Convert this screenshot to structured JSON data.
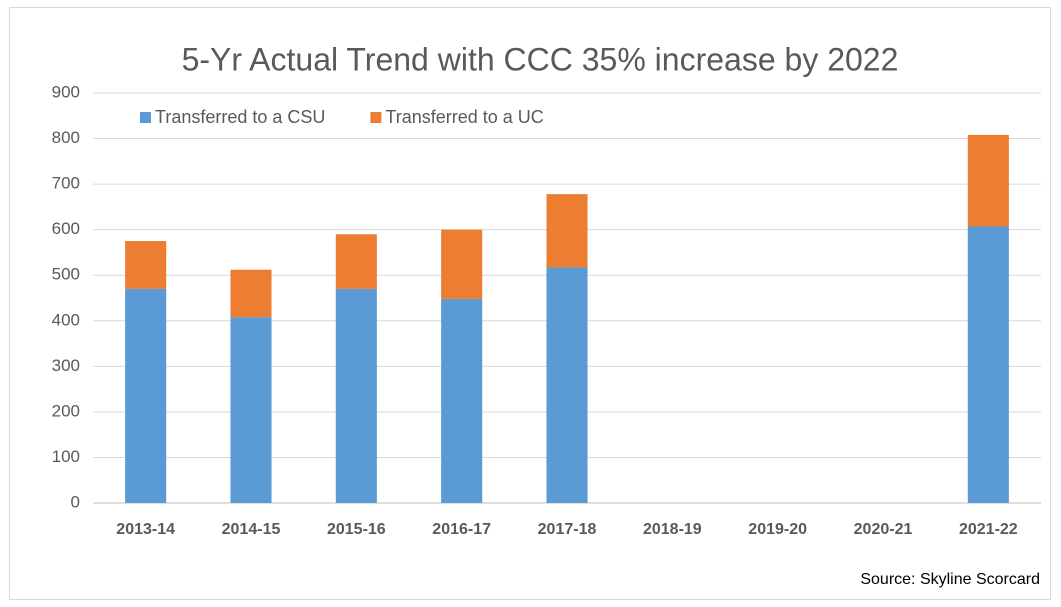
{
  "chart_data": {
    "type": "stacked-bar",
    "title": "5-Yr Actual Trend with CCC 35% increase by 2022",
    "categories": [
      "2013-14",
      "2014-15",
      "2015-16",
      "2016-17",
      "2017-18",
      "2018-19",
      "2019-20",
      "2020-21",
      "2021-22"
    ],
    "series": [
      {
        "name": "Transferred to a CSU",
        "color": "#5b9bd5",
        "values": [
          470,
          408,
          470,
          448,
          517,
          null,
          null,
          null,
          607
        ]
      },
      {
        "name": "Transferred to a UC",
        "color": "#ed7d31",
        "values": [
          105,
          104,
          120,
          152,
          161,
          null,
          null,
          null,
          201
        ]
      }
    ],
    "ylim": [
      0,
      900
    ],
    "yticks": [
      0,
      100,
      200,
      300,
      400,
      500,
      600,
      700,
      800,
      900
    ],
    "grid": true,
    "legend": "top",
    "annotation": "Source: Skyline Scorcard"
  }
}
